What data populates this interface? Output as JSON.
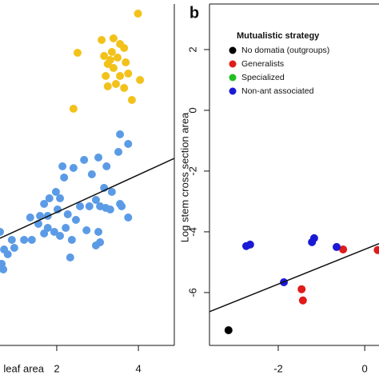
{
  "chart_data": [
    {
      "type": "scatter",
      "x_label": "Log leaf area",
      "xlim": [
        0.61,
        4.88
      ],
      "ylim": [
        0,
        8.54
      ],
      "xticks": [
        2,
        4
      ],
      "series": [
        {
          "color": "#f2c21b",
          "x": [
            3.99,
            3.1,
            3.39,
            3.55,
            3.65,
            3.16,
            3.35,
            3.49,
            3.69,
            3.25,
            3.39,
            3.2,
            3.55,
            3.75,
            3.25,
            3.45,
            3.65,
            4.04,
            3.84,
            2.51,
            2.41,
            3.31
          ],
          "y": [
            8.3,
            7.64,
            7.68,
            7.54,
            7.44,
            7.24,
            7.34,
            7.2,
            7.08,
            7.04,
            6.94,
            6.74,
            6.74,
            6.8,
            6.48,
            6.54,
            6.44,
            6.64,
            6.14,
            7.32,
            5.92,
            7.14
          ]
        },
        {
          "color": "#5b9be6",
          "x": [
            3.55,
            3.75,
            3.51,
            3.02,
            3.22,
            2.67,
            2.14,
            2.41,
            2.18,
            2.86,
            1.98,
            2.08,
            1.82,
            3.16,
            3.35,
            1.69,
            2.96,
            2.57,
            2.8,
            3.06,
            3.2,
            3.31,
            3.55,
            2.02,
            2.27,
            2.47,
            1.78,
            1.59,
            1.35,
            1.55,
            1.78,
            1.69,
            1.94,
            2.08,
            2.22,
            2.37,
            2.73,
            3.02,
            3.06,
            2.96,
            2.33,
            1.39,
            1.2,
            0.96,
            0.8,
            0.71,
            0.61,
            0.65,
            0.9,
            0.69,
            3.75,
            3.59
          ],
          "y": [
            5.28,
            5.04,
            4.84,
            4.7,
            4.48,
            4.64,
            4.48,
            4.44,
            4.2,
            4.28,
            3.84,
            3.68,
            3.68,
            3.94,
            3.84,
            3.54,
            3.64,
            3.48,
            3.48,
            3.48,
            3.44,
            3.4,
            3.54,
            3.4,
            3.28,
            3.14,
            3.24,
            3.24,
            3.2,
            3.04,
            2.94,
            2.8,
            2.84,
            2.74,
            2.94,
            2.64,
            2.88,
            2.84,
            2.58,
            2.5,
            2.2,
            2.64,
            2.64,
            2.44,
            2.28,
            2.4,
            2.84,
            2.04,
            2.64,
            1.9,
            3.2,
            3.48
          ]
        }
      ],
      "fit": {
        "x": [
          0.61,
          4.88
        ],
        "y": [
          2.68,
          4.68
        ]
      }
    },
    {
      "type": "scatter",
      "panel_label": "b",
      "y_label": "Log stem cross section area",
      "legend_title": "Mutualistic strategy",
      "xlim": [
        -3.59,
        0.33
      ],
      "ylim": [
        -7.74,
        3.5
      ],
      "xticks": [
        -2,
        0
      ],
      "yticks": [
        -6,
        -4,
        -2,
        0,
        2
      ],
      "series": [
        {
          "name": "No domatia (outgroups)",
          "color": "#000000",
          "x": [
            -3.15
          ],
          "y": [
            -7.24
          ]
        },
        {
          "name": "Generalists",
          "color": "#e01b1b",
          "x": [
            -1.46,
            -1.43,
            -0.5,
            0.3
          ],
          "y": [
            -5.89,
            -6.26,
            -4.58,
            -4.6
          ]
        },
        {
          "name": "Specialized",
          "color": "#1fbf1f",
          "x": [],
          "y": []
        },
        {
          "name": "Non-ant associated",
          "color": "#1a1ad6",
          "x": [
            -2.74,
            -2.65,
            -1.87,
            -1.22,
            -1.17,
            -0.65
          ],
          "y": [
            -4.47,
            -4.42,
            -5.66,
            -4.34,
            -4.21,
            -4.5
          ]
        }
      ],
      "fit": {
        "x": [
          -3.59,
          0.33
        ],
        "y": [
          -6.63,
          -4.39
        ]
      }
    }
  ]
}
